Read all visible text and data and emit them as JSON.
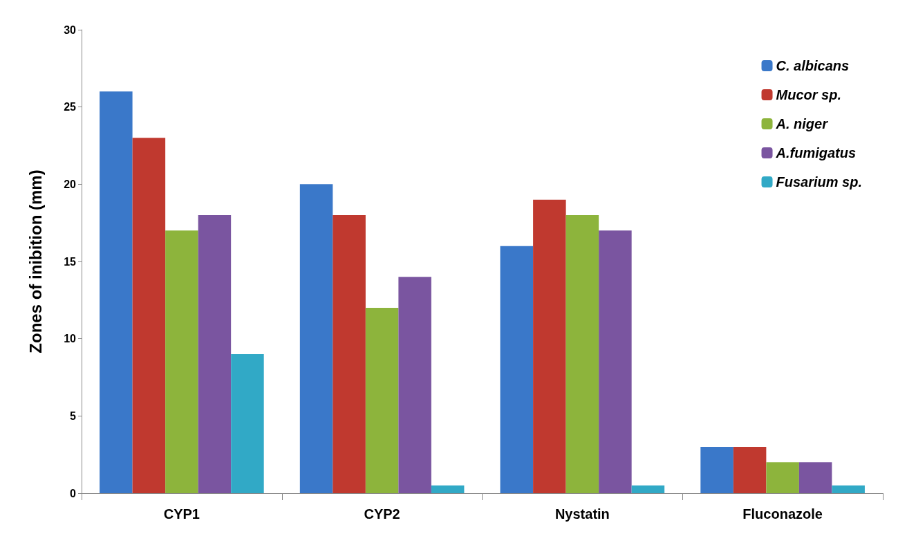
{
  "chart_data": {
    "type": "bar",
    "ylabel": "Zones of inibition (mm)",
    "categories": [
      "CYP1",
      "CYP2",
      "Nystatin",
      "Fluconazole"
    ],
    "series": [
      {
        "name": "C. albicans",
        "color": "#3a78c9",
        "values": [
          26,
          20,
          16,
          3
        ]
      },
      {
        "name": "Mucor sp.",
        "color": "#c0392f",
        "values": [
          23,
          18,
          19,
          3
        ]
      },
      {
        "name": "A. niger",
        "color": "#8db43c",
        "values": [
          17,
          12,
          18,
          2
        ]
      },
      {
        "name": "A.fumigatus",
        "color": "#7a55a0",
        "values": [
          18,
          14,
          17,
          2
        ]
      },
      {
        "name": "Fusarium sp.",
        "color": "#31a9c6",
        "values": [
          9,
          0.5,
          0.5,
          0.5
        ]
      }
    ],
    "ylim": [
      0,
      30
    ],
    "yticks": [
      0,
      5,
      10,
      15,
      20,
      25,
      30
    ],
    "grid": false,
    "legend": "top right"
  }
}
